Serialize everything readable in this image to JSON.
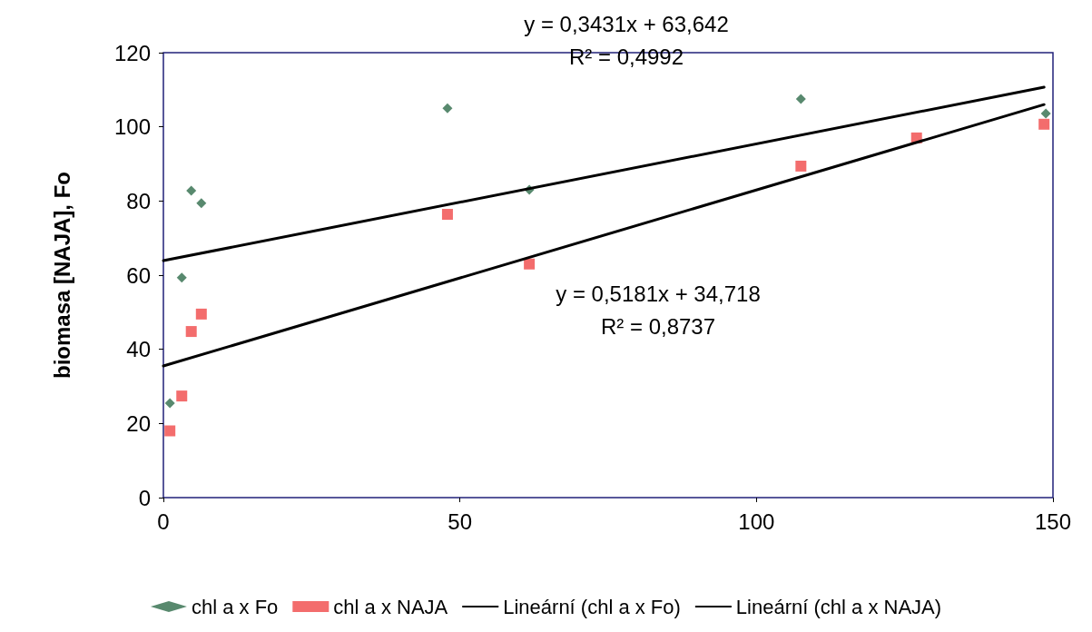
{
  "chart_data": {
    "type": "scatter",
    "ylabel": "biomasa [NAJA], Fo",
    "annotations": [
      "y = 0,3431x + 63,642\nR² = 0,4992",
      "y = 0,5181x + 34,718\nR² = 0,8737"
    ],
    "xlim": [
      0,
      150
    ],
    "xticks": [
      0,
      50,
      100,
      150
    ],
    "ylim": [
      0,
      120
    ],
    "yticks": [
      0,
      20,
      40,
      60,
      80,
      100,
      120
    ],
    "grid": false,
    "legend": "bottom",
    "series": [
      {
        "name": "chl a x Fo",
        "marker": "diamond",
        "color": "#2e6b4a",
        "x": [
          1.1,
          3.1,
          4.7,
          6.4,
          47.9,
          61.7,
          107.5,
          148.8
        ],
        "values": [
          25.5,
          59.3,
          82.8,
          79.4,
          105,
          83,
          107.5,
          103.6
        ]
      },
      {
        "name": "chl a x NAJA",
        "marker": "square",
        "color": "#f04848",
        "x": [
          1.1,
          3.1,
          4.7,
          6.4,
          47.9,
          61.7,
          107.5,
          127,
          148.5
        ],
        "values": [
          18,
          27.4,
          44.8,
          49.5,
          76.4,
          63,
          89.4,
          97,
          100.7
        ]
      },
      {
        "name": "Lineární (chl a x Fo)",
        "type": "line",
        "marker": "none",
        "line_style": "solid",
        "color": "#000000",
        "x": [
          0,
          148.5
        ],
        "values": [
          63.9,
          110.7
        ]
      },
      {
        "name": "Lineární (chl a x NAJA)",
        "type": "line",
        "marker": "none",
        "line_style": "solid",
        "color": "#000000",
        "x": [
          0,
          148.5
        ],
        "values": [
          35.5,
          106
        ]
      }
    ]
  }
}
